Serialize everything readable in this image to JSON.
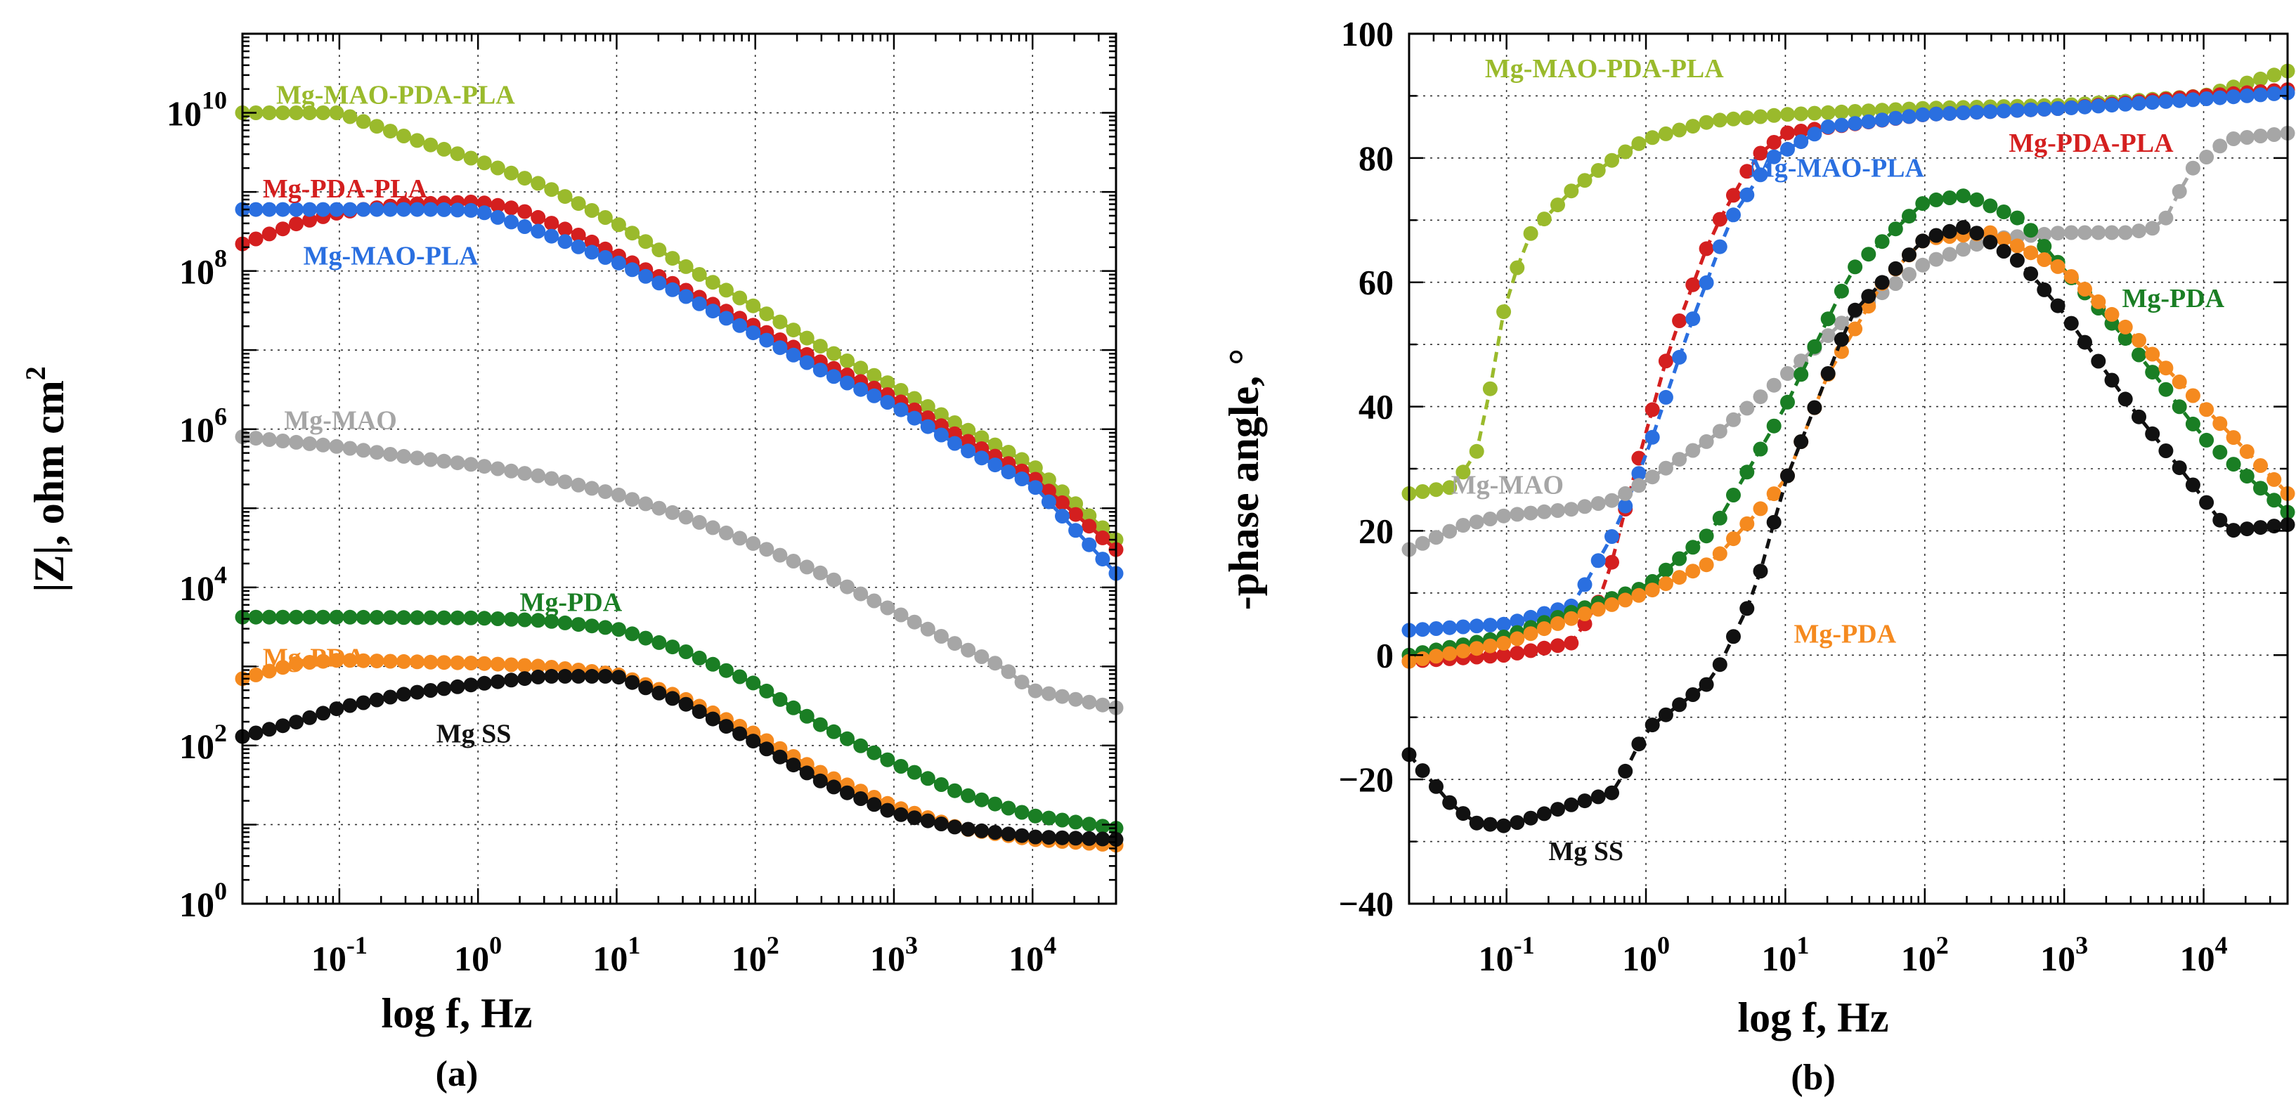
{
  "figure": {
    "panels": [
      {
        "id": "a",
        "panel_label": "(a)",
        "xlabel": "log f, Hz",
        "ylabel": "|Z|, ohm cm",
        "ylabel_superscript": "2"
      },
      {
        "id": "b",
        "panel_label": "(b)",
        "xlabel": "log f, Hz",
        "ylabel": "-phase angle, °"
      }
    ]
  },
  "chart_data": [
    {
      "type": "scatter",
      "panel": "(a)",
      "xscale": "log",
      "yscale": "log",
      "xlim": [
        0.02,
        40000
      ],
      "ylim": [
        1,
        100000000000
      ],
      "grid": true,
      "xlabel": "log f, Hz",
      "ylabel": "|Z|, ohm cm²",
      "x_tick_labels": [
        "10-1",
        "100",
        "101",
        "102",
        "103",
        "104"
      ],
      "y_tick_labels": [
        "100",
        "102",
        "104",
        "106",
        "108",
        "1010"
      ],
      "series": [
        {
          "name": "Mg-MAO-PDA-PLA",
          "color": "#9aba2c",
          "points": [
            [
              0.02,
              10000000000.0
            ],
            [
              0.1,
              10000000000.0
            ],
            [
              0.3,
              5000000000.0
            ],
            [
              1,
              2500000000.0
            ],
            [
              3,
              1200000000.0
            ],
            [
              10,
              400000000.0
            ],
            [
              30,
              120000000.0
            ],
            [
              100,
              35000000.0
            ],
            [
              300,
              11000000.0
            ],
            [
              1000,
              3500000.0
            ],
            [
              3000,
              1100000.0
            ],
            [
              10000,
              350000.0
            ],
            [
              40000,
              40000.0
            ]
          ]
        },
        {
          "name": "Mg-PDA-PLA",
          "color": "#d41f1f",
          "points": [
            [
              0.02,
              220000000.0
            ],
            [
              0.05,
              400000000.0
            ],
            [
              0.1,
              550000000.0
            ],
            [
              0.3,
              700000000.0
            ],
            [
              1,
              750000000.0
            ],
            [
              2,
              600000000.0
            ],
            [
              5,
              300000000.0
            ],
            [
              10,
              160000000.0
            ],
            [
              30,
              60000000.0
            ],
            [
              100,
              20000000.0
            ],
            [
              300,
              7000000.0
            ],
            [
              1000,
              2500000.0
            ],
            [
              3000,
              800000.0
            ],
            [
              10000,
              250000.0
            ],
            [
              40000,
              30000.0
            ]
          ]
        },
        {
          "name": "Mg-MAO-PLA",
          "color": "#2a6fe0",
          "points": [
            [
              0.02,
              600000000.0
            ],
            [
              0.1,
              600000000.0
            ],
            [
              0.5,
              600000000.0
            ],
            [
              1,
              580000000.0
            ],
            [
              3,
              300000000.0
            ],
            [
              10,
              130000000.0
            ],
            [
              30,
              50000000.0
            ],
            [
              100,
              16000000.0
            ],
            [
              300,
              5500000.0
            ],
            [
              1000,
              2000000.0
            ],
            [
              3000,
              600000.0
            ],
            [
              10000,
              200000.0
            ],
            [
              40000,
              15000.0
            ]
          ]
        },
        {
          "name": "Mg-MAO",
          "color": "#a6a6a6",
          "points": [
            [
              0.02,
              800000.0
            ],
            [
              0.1,
              600000.0
            ],
            [
              0.3,
              450000.0
            ],
            [
              1,
              350000.0
            ],
            [
              3,
              250000.0
            ],
            [
              10,
              150000.0
            ],
            [
              30,
              80000.0
            ],
            [
              100,
              35000.0
            ],
            [
              300,
              15000.0
            ],
            [
              1000,
              5000.0
            ],
            [
              3000,
              1800.0
            ],
            [
              6000,
              1000.0
            ],
            [
              10000,
              500.0
            ],
            [
              40000,
              300.0
            ]
          ]
        },
        {
          "name": "Mg-PDA",
          "color": "#1a7e24",
          "points": [
            [
              0.02,
              4200.0
            ],
            [
              0.1,
              4200.0
            ],
            [
              1,
              4100.0
            ],
            [
              3,
              3800.0
            ],
            [
              10,
              3000.0
            ],
            [
              30,
              1600.0
            ],
            [
              100,
              600.0
            ],
            [
              300,
              180.0
            ],
            [
              1000,
              60.0
            ],
            [
              3000,
              25.0
            ],
            [
              10000,
              13.0
            ],
            [
              40000,
              9
            ]
          ]
        },
        {
          "name": "Mg-PDA",
          "color": "#f58a1f",
          "points": [
            [
              0.02,
              700.0
            ],
            [
              0.05,
              1100.0
            ],
            [
              0.1,
              1200.0
            ],
            [
              1,
              1100.0
            ],
            [
              3,
              1000.0
            ],
            [
              10,
              800.0
            ],
            [
              30,
              400.0
            ],
            [
              100,
              140.0
            ],
            [
              300,
              45.0
            ],
            [
              1000,
              17.0
            ],
            [
              3000,
              9
            ],
            [
              10000,
              6.5
            ],
            [
              40000,
              5.5
            ]
          ]
        },
        {
          "name": "Mg SS",
          "color": "#111111",
          "points": [
            [
              0.02,
              130.0
            ],
            [
              0.05,
              200.0
            ],
            [
              0.1,
              300.0
            ],
            [
              0.3,
              450.0
            ],
            [
              1,
              600.0
            ],
            [
              3,
              750.0
            ],
            [
              10,
              750.0
            ],
            [
              30,
              350.0
            ],
            [
              100,
              110.0
            ],
            [
              300,
              35.0
            ],
            [
              1000,
              14.0
            ],
            [
              3000,
              9
            ],
            [
              10000,
              7
            ],
            [
              40000,
              6.5
            ]
          ]
        }
      ],
      "annotations": [
        {
          "text": "Mg-MAO-PDA-PLA",
          "color": "#9aba2c",
          "at": [
            0.035,
            13000000000.0
          ]
        },
        {
          "text": "Mg-PDA-PLA",
          "color": "#d41f1f",
          "at": [
            0.028,
            850000000.0
          ]
        },
        {
          "text": "Mg-MAO-PLA",
          "color": "#2a6fe0",
          "at": [
            0.055,
            120000000.0
          ]
        },
        {
          "text": "Mg-MAO",
          "color": "#a6a6a6",
          "at": [
            0.04,
            1000000.0
          ]
        },
        {
          "text": "Mg-PDA",
          "color": "#1a7e24",
          "at": [
            2.0,
            5000.0
          ]
        },
        {
          "text": "Mg-PDA",
          "color": "#f58a1f",
          "at": [
            0.028,
            1000.0
          ]
        },
        {
          "text": "Mg SS",
          "color": "#111111",
          "at": [
            0.5,
            110.0
          ]
        }
      ]
    },
    {
      "type": "scatter",
      "panel": "(b)",
      "xscale": "log",
      "yscale": "linear",
      "xlim": [
        0.02,
        40000
      ],
      "ylim": [
        -40,
        100
      ],
      "grid": true,
      "xlabel": "log f, Hz",
      "ylabel": "-phase angle, °",
      "x_tick_labels": [
        "10-1",
        "100",
        "101",
        "102",
        "103",
        "104"
      ],
      "y_tick_labels": [
        "−40",
        "−20",
        "0",
        "20",
        "40",
        "60",
        "80",
        "100"
      ],
      "series": [
        {
          "name": "Mg-MAO-PDA-PLA",
          "color": "#9aba2c",
          "points": [
            [
              0.02,
              26
            ],
            [
              0.04,
              27
            ],
            [
              0.06,
              32
            ],
            [
              0.08,
              45
            ],
            [
              0.1,
              58
            ],
            [
              0.15,
              68
            ],
            [
              0.3,
              75
            ],
            [
              0.6,
              80
            ],
            [
              1,
              83
            ],
            [
              3,
              86
            ],
            [
              10,
              87
            ],
            [
              100,
              88
            ],
            [
              1000,
              88.5
            ],
            [
              10000,
              90
            ],
            [
              40000,
              94
            ]
          ]
        },
        {
          "name": "Mg-PDA-PLA",
          "color": "#d41f1f",
          "points": [
            [
              0.02,
              -1
            ],
            [
              0.1,
              0
            ],
            [
              0.3,
              2
            ],
            [
              0.5,
              10
            ],
            [
              0.8,
              28
            ],
            [
              1.5,
              50
            ],
            [
              3,
              68
            ],
            [
              6,
              80
            ],
            [
              10,
              84
            ],
            [
              100,
              87
            ],
            [
              1000,
              88
            ],
            [
              10000,
              90
            ],
            [
              40000,
              91
            ]
          ]
        },
        {
          "name": "Mg-MAO-PLA",
          "color": "#2a6fe0",
          "points": [
            [
              0.02,
              4
            ],
            [
              0.1,
              5
            ],
            [
              0.3,
              8
            ],
            [
              0.6,
              20
            ],
            [
              1,
              32
            ],
            [
              2,
              52
            ],
            [
              4,
              70
            ],
            [
              8,
              80
            ],
            [
              20,
              85
            ],
            [
              100,
              87
            ],
            [
              1000,
              88
            ],
            [
              10000,
              89.5
            ],
            [
              40000,
              90.5
            ]
          ]
        },
        {
          "name": "Mg-MAO",
          "color": "#a6a6a6",
          "points": [
            [
              0.02,
              17
            ],
            [
              0.05,
              21
            ],
            [
              0.1,
              22.5
            ],
            [
              0.3,
              23.5
            ],
            [
              0.6,
              25
            ],
            [
              1,
              28
            ],
            [
              3,
              35
            ],
            [
              10,
              45
            ],
            [
              30,
              55
            ],
            [
              100,
              63
            ],
            [
              300,
              67
            ],
            [
              1000,
              68
            ],
            [
              3000,
              68
            ],
            [
              5000,
              69
            ],
            [
              8000,
              78
            ],
            [
              15000,
              83
            ],
            [
              40000,
              84
            ]
          ]
        },
        {
          "name": "Mg-PDA",
          "color": "#1a7e24",
          "points": [
            [
              0.02,
              0
            ],
            [
              0.1,
              3
            ],
            [
              0.3,
              7
            ],
            [
              1,
              11
            ],
            [
              3,
              20
            ],
            [
              10,
              40
            ],
            [
              30,
              62
            ],
            [
              100,
              73
            ],
            [
              200,
              74
            ],
            [
              500,
              70
            ],
            [
              1000,
              62
            ],
            [
              3000,
              50
            ],
            [
              10000,
              35
            ],
            [
              40000,
              23
            ]
          ]
        },
        {
          "name": "Mg-PDA",
          "color": "#f58a1f",
          "points": [
            [
              0.02,
              -1
            ],
            [
              0.1,
              2
            ],
            [
              0.3,
              6
            ],
            [
              1,
              10
            ],
            [
              3,
              15
            ],
            [
              10,
              28
            ],
            [
              20,
              45
            ],
            [
              50,
              60
            ],
            [
              100,
              67
            ],
            [
              300,
              68
            ],
            [
              1000,
              62
            ],
            [
              3000,
              52
            ],
            [
              10000,
              40
            ],
            [
              40000,
              26
            ]
          ]
        },
        {
          "name": "Mg SS",
          "color": "#111111",
          "points": [
            [
              0.02,
              -16
            ],
            [
              0.04,
              -24
            ],
            [
              0.06,
              -27
            ],
            [
              0.1,
              -27.5
            ],
            [
              0.3,
              -24
            ],
            [
              0.6,
              -22
            ],
            [
              1,
              -12
            ],
            [
              3,
              -4
            ],
            [
              6,
              10
            ],
            [
              10,
              28
            ],
            [
              30,
              55
            ],
            [
              100,
              67
            ],
            [
              200,
              69
            ],
            [
              500,
              63
            ],
            [
              1000,
              55
            ],
            [
              3000,
              40
            ],
            [
              8000,
              28
            ],
            [
              15000,
              20
            ],
            [
              40000,
              21
            ]
          ]
        }
      ],
      "annotations": [
        {
          "text": "Mg-MAO-PDA-PLA",
          "color": "#9aba2c",
          "at": [
            0.07,
            93
          ]
        },
        {
          "text": "Mg-PDA-PLA",
          "color": "#d41f1f",
          "at": [
            400,
            81
          ]
        },
        {
          "text": "Mg-MAO-PLA",
          "color": "#2a6fe0",
          "at": [
            5.5,
            77
          ]
        },
        {
          "text": "Mg-PDA",
          "color": "#1a7e24",
          "at": [
            2600,
            56
          ]
        },
        {
          "text": "Mg-MAO",
          "color": "#a6a6a6",
          "at": [
            0.04,
            26
          ]
        },
        {
          "text": "Mg-PDA",
          "color": "#f58a1f",
          "at": [
            11.5,
            2
          ]
        },
        {
          "text": "Mg SS",
          "color": "#111111",
          "at": [
            0.2,
            -33
          ]
        }
      ]
    }
  ]
}
